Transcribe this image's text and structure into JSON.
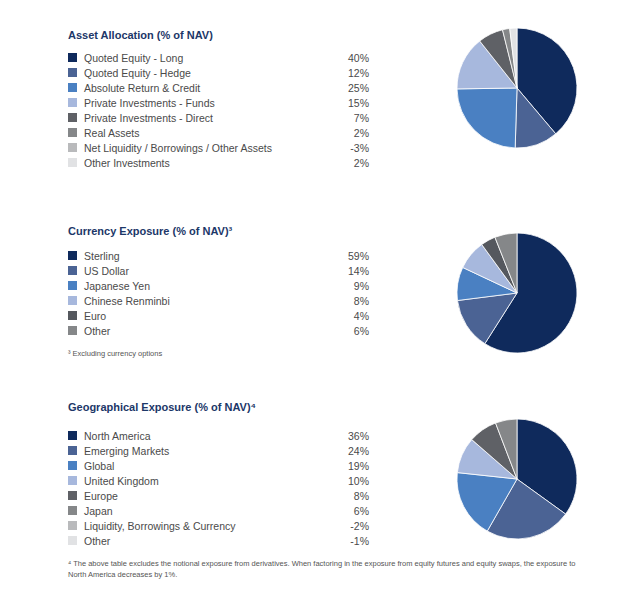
{
  "chart_data": [
    {
      "type": "pie",
      "title": "Asset Allocation (% of NAV)",
      "categories": [
        "Quoted Equity - Long",
        "Quoted Equity - Hedge",
        "Absolute Return & Credit",
        "Private Investments - Funds",
        "Private Investments - Direct",
        "Real Assets",
        "Net Liquidity / Borrowings / Other Assets",
        "Other Investments"
      ],
      "values": [
        40,
        12,
        25,
        15,
        7,
        2,
        -3,
        2
      ],
      "value_labels": [
        "40%",
        "12%",
        "25%",
        "15%",
        "7%",
        "2%",
        "-3%",
        "2%"
      ],
      "colors": [
        "#0f2a5c",
        "#4b6394",
        "#4a80c2",
        "#a7b8dd",
        "#5f6166",
        "#858789",
        "#b9babc",
        "#e1e2e4"
      ],
      "data_labels": true
    },
    {
      "type": "pie",
      "title": "Currency Exposure (% of NAV)³",
      "categories": [
        "Sterling",
        "US Dollar",
        "Japanese Yen",
        "Chinese Renminbi",
        "Euro",
        "Other"
      ],
      "values": [
        59,
        14,
        9,
        8,
        4,
        6
      ],
      "value_labels": [
        "59%",
        "14%",
        "9%",
        "8%",
        "4%",
        "6%"
      ],
      "colors": [
        "#0f2a5c",
        "#4b6394",
        "#4a80c2",
        "#a7b8dd",
        "#55585e",
        "#858789"
      ],
      "data_labels": true,
      "annotations": [
        "³ Excluding currency options"
      ]
    },
    {
      "type": "pie",
      "title": "Geographical Exposure (% of NAV)⁴",
      "categories": [
        "North America",
        "Emerging Markets",
        "Global",
        "United Kingdom",
        "Europe",
        "Japan",
        "Liquidity, Borrowings & Currency",
        "Other"
      ],
      "values": [
        36,
        24,
        19,
        10,
        8,
        6,
        -2,
        -1
      ],
      "value_labels": [
        "36%",
        "24%",
        "19%",
        "10%",
        "8%",
        "6%",
        "-2%",
        "-1%"
      ],
      "colors": [
        "#0f2a5c",
        "#4b6394",
        "#4a80c2",
        "#a7b8dd",
        "#5f6166",
        "#858789",
        "#b9babc",
        "#e1e2e4"
      ],
      "data_labels": true,
      "annotations": [
        "⁴ The above table excludes the notional exposure from derivatives. When factoring in the exposure from equity futures and equity swaps, the exposure to North America decreases by 1%."
      ]
    }
  ]
}
